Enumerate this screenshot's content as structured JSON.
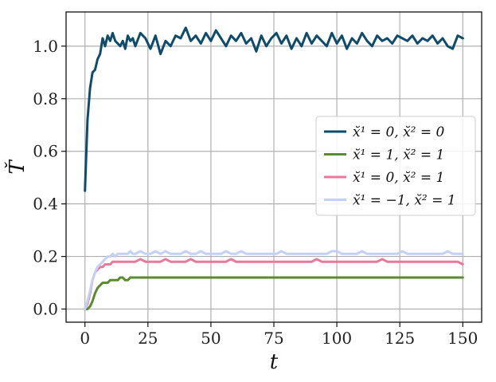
{
  "chart_data": {
    "type": "line",
    "title": "",
    "xlabel": "t",
    "ylabel": "Ť",
    "xlim": [
      -7.5,
      157.5
    ],
    "ylim": [
      -0.05,
      1.13
    ],
    "xticks": [
      0,
      25,
      50,
      75,
      100,
      125,
      150
    ],
    "yticks": [
      0.0,
      0.2,
      0.4,
      0.6,
      0.8,
      1.0
    ],
    "xtick_labels": [
      "0",
      "25",
      "50",
      "75",
      "100",
      "125",
      "150"
    ],
    "ytick_labels": [
      "0.0",
      "0.2",
      "0.4",
      "0.6",
      "0.8",
      "1.0"
    ],
    "grid": true,
    "legend_position": "center-right",
    "series": [
      {
        "name": "x̆¹ = 0,  x̆² = 0",
        "color": "#0f4c6b",
        "x": [
          0,
          1,
          2,
          3,
          4,
          5,
          6,
          7,
          8,
          9,
          10,
          11,
          12,
          13,
          14,
          15,
          16,
          17,
          18,
          19,
          20,
          22,
          24,
          26,
          28,
          30,
          32,
          34,
          36,
          38,
          40,
          42,
          44,
          46,
          48,
          50,
          52,
          54,
          56,
          58,
          60,
          62,
          64,
          66,
          68,
          70,
          72,
          74,
          76,
          78,
          80,
          82,
          84,
          86,
          88,
          90,
          92,
          94,
          96,
          98,
          100,
          102,
          104,
          106,
          108,
          110,
          112,
          114,
          116,
          118,
          120,
          122,
          124,
          126,
          128,
          130,
          132,
          134,
          136,
          138,
          140,
          142,
          144,
          146,
          148,
          150
        ],
        "values": [
          0.45,
          0.72,
          0.84,
          0.9,
          0.91,
          0.95,
          0.97,
          1.03,
          1.0,
          1.04,
          1.02,
          1.05,
          1.02,
          1.01,
          1.0,
          1.02,
          0.99,
          1.04,
          1.02,
          1.03,
          1.0,
          1.05,
          1.03,
          0.99,
          1.04,
          0.97,
          1.02,
          1.0,
          1.04,
          1.03,
          1.07,
          1.02,
          1.04,
          1.01,
          1.05,
          1.02,
          1.06,
          1.03,
          1.0,
          1.04,
          1.02,
          1.05,
          1.01,
          1.03,
          0.98,
          1.04,
          1.0,
          1.03,
          1.05,
          1.01,
          1.04,
          0.99,
          1.03,
          1.0,
          1.05,
          1.01,
          1.04,
          1.02,
          1.0,
          1.05,
          1.01,
          1.04,
          0.99,
          1.03,
          1.01,
          1.05,
          1.02,
          1.0,
          1.04,
          1.02,
          1.03,
          1.01,
          1.04,
          1.03,
          1.02,
          1.04,
          1.01,
          1.03,
          1.02,
          1.04,
          1.01,
          1.03,
          1.0,
          0.99,
          1.04,
          1.03
        ]
      },
      {
        "name": "x̆¹ = 1,  x̆² = 1",
        "color": "#5c8a2e",
        "x": [
          0,
          1,
          2,
          3,
          4,
          5,
          6,
          7,
          8,
          9,
          10,
          11,
          12,
          13,
          14,
          15,
          16,
          17,
          18,
          19,
          20,
          22,
          24,
          26,
          28,
          30,
          32,
          34,
          36,
          38,
          40,
          42,
          44,
          46,
          48,
          50,
          52,
          54,
          56,
          58,
          60,
          62,
          64,
          66,
          68,
          70,
          72,
          74,
          76,
          78,
          80,
          82,
          84,
          86,
          88,
          90,
          92,
          94,
          96,
          98,
          100,
          102,
          104,
          106,
          108,
          110,
          112,
          114,
          116,
          118,
          120,
          122,
          124,
          126,
          128,
          130,
          132,
          134,
          136,
          138,
          140,
          142,
          144,
          146,
          148,
          150
        ],
        "values": [
          0.0,
          0.0,
          0.01,
          0.03,
          0.06,
          0.08,
          0.09,
          0.1,
          0.1,
          0.1,
          0.11,
          0.11,
          0.11,
          0.11,
          0.12,
          0.12,
          0.11,
          0.11,
          0.12,
          0.12,
          0.12,
          0.12,
          0.12,
          0.12,
          0.12,
          0.12,
          0.12,
          0.12,
          0.12,
          0.12,
          0.12,
          0.12,
          0.12,
          0.12,
          0.12,
          0.12,
          0.12,
          0.12,
          0.12,
          0.12,
          0.12,
          0.12,
          0.12,
          0.12,
          0.12,
          0.12,
          0.12,
          0.12,
          0.12,
          0.12,
          0.12,
          0.12,
          0.12,
          0.12,
          0.12,
          0.12,
          0.12,
          0.12,
          0.12,
          0.12,
          0.12,
          0.12,
          0.12,
          0.12,
          0.12,
          0.12,
          0.12,
          0.12,
          0.12,
          0.12,
          0.12,
          0.12,
          0.12,
          0.12,
          0.12,
          0.12,
          0.12,
          0.12,
          0.12,
          0.12,
          0.12,
          0.12,
          0.12,
          0.12,
          0.12,
          0.12
        ]
      },
      {
        "name": "x̆¹ = 0,  x̆² = 1",
        "color": "#e8799a",
        "x": [
          0,
          1,
          2,
          3,
          4,
          5,
          6,
          7,
          8,
          9,
          10,
          11,
          12,
          13,
          14,
          15,
          16,
          17,
          18,
          19,
          20,
          22,
          24,
          26,
          28,
          30,
          32,
          34,
          36,
          38,
          40,
          42,
          44,
          46,
          48,
          50,
          52,
          54,
          56,
          58,
          60,
          62,
          64,
          66,
          68,
          70,
          72,
          74,
          76,
          78,
          80,
          82,
          84,
          86,
          88,
          90,
          92,
          94,
          96,
          98,
          100,
          102,
          104,
          106,
          108,
          110,
          112,
          114,
          116,
          118,
          120,
          122,
          124,
          126,
          128,
          130,
          132,
          134,
          136,
          138,
          140,
          142,
          144,
          146,
          148,
          150
        ],
        "values": [
          0.0,
          0.02,
          0.06,
          0.11,
          0.14,
          0.15,
          0.16,
          0.16,
          0.17,
          0.17,
          0.17,
          0.18,
          0.18,
          0.18,
          0.18,
          0.18,
          0.18,
          0.18,
          0.18,
          0.18,
          0.18,
          0.19,
          0.18,
          0.18,
          0.18,
          0.18,
          0.19,
          0.18,
          0.18,
          0.18,
          0.18,
          0.19,
          0.18,
          0.18,
          0.18,
          0.18,
          0.18,
          0.18,
          0.18,
          0.19,
          0.18,
          0.18,
          0.18,
          0.18,
          0.18,
          0.18,
          0.18,
          0.18,
          0.18,
          0.18,
          0.18,
          0.18,
          0.18,
          0.18,
          0.18,
          0.18,
          0.19,
          0.18,
          0.18,
          0.18,
          0.18,
          0.18,
          0.18,
          0.18,
          0.18,
          0.18,
          0.18,
          0.18,
          0.18,
          0.19,
          0.18,
          0.18,
          0.18,
          0.18,
          0.18,
          0.18,
          0.18,
          0.18,
          0.18,
          0.18,
          0.18,
          0.18,
          0.18,
          0.18,
          0.18,
          0.17
        ]
      },
      {
        "name": "x̆¹ = −1,  x̆² = 1",
        "color": "#c4d0f5",
        "x": [
          0,
          1,
          2,
          3,
          4,
          5,
          6,
          7,
          8,
          9,
          10,
          11,
          12,
          13,
          14,
          15,
          16,
          17,
          18,
          19,
          20,
          22,
          24,
          26,
          28,
          30,
          32,
          34,
          36,
          38,
          40,
          42,
          44,
          46,
          48,
          50,
          52,
          54,
          56,
          58,
          60,
          62,
          64,
          66,
          68,
          70,
          72,
          74,
          76,
          78,
          80,
          82,
          84,
          86,
          88,
          90,
          92,
          94,
          96,
          98,
          100,
          102,
          104,
          106,
          108,
          110,
          112,
          114,
          116,
          118,
          120,
          122,
          124,
          126,
          128,
          130,
          132,
          134,
          136,
          138,
          140,
          142,
          144,
          146,
          148,
          150
        ],
        "values": [
          0.0,
          0.03,
          0.07,
          0.11,
          0.14,
          0.16,
          0.17,
          0.18,
          0.19,
          0.2,
          0.2,
          0.21,
          0.2,
          0.21,
          0.21,
          0.21,
          0.21,
          0.21,
          0.22,
          0.21,
          0.21,
          0.22,
          0.21,
          0.21,
          0.22,
          0.21,
          0.22,
          0.21,
          0.21,
          0.21,
          0.22,
          0.21,
          0.21,
          0.22,
          0.21,
          0.21,
          0.21,
          0.21,
          0.22,
          0.21,
          0.21,
          0.22,
          0.21,
          0.21,
          0.21,
          0.21,
          0.21,
          0.21,
          0.21,
          0.22,
          0.21,
          0.21,
          0.21,
          0.21,
          0.21,
          0.21,
          0.21,
          0.21,
          0.21,
          0.22,
          0.22,
          0.21,
          0.21,
          0.21,
          0.21,
          0.22,
          0.21,
          0.21,
          0.21,
          0.21,
          0.21,
          0.21,
          0.21,
          0.22,
          0.21,
          0.21,
          0.21,
          0.21,
          0.21,
          0.21,
          0.21,
          0.21,
          0.22,
          0.21,
          0.21,
          0.21
        ]
      }
    ]
  }
}
